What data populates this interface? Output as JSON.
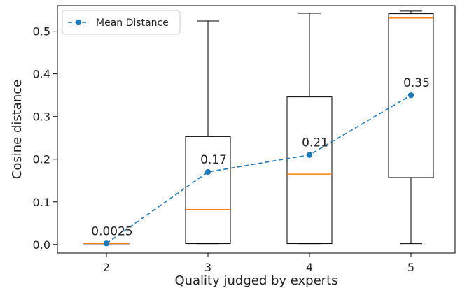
{
  "chart_data": {
    "type": "box",
    "xlabel": "Quality judged by experts",
    "ylabel": "Cosine distance",
    "categories": [
      "2",
      "3",
      "4",
      "5"
    ],
    "ylim": [
      -0.02,
      0.56
    ],
    "yticks": [
      0.0,
      0.1,
      0.2,
      0.3,
      0.4,
      0.5
    ],
    "ytick_labels": [
      "0.0",
      "0.1",
      "0.2",
      "0.3",
      "0.4",
      "0.5"
    ],
    "grid": false,
    "boxes": [
      {
        "category": "2",
        "whisker_low": 0.0025,
        "q1": 0.0025,
        "median": 0.0025,
        "q3": 0.0025,
        "whisker_high": 0.0025
      },
      {
        "category": "3",
        "whisker_low": 0.002,
        "q1": 0.002,
        "median": 0.082,
        "q3": 0.253,
        "whisker_high": 0.524
      },
      {
        "category": "4",
        "whisker_low": 0.002,
        "q1": 0.002,
        "median": 0.165,
        "q3": 0.346,
        "whisker_high": 0.542
      },
      {
        "category": "5",
        "whisker_low": 0.002,
        "q1": 0.157,
        "median": 0.531,
        "q3": 0.541,
        "whisker_high": 0.547
      }
    ],
    "series": [
      {
        "name": "Mean Distance",
        "values": [
          0.0025,
          0.17,
          0.21,
          0.35
        ],
        "labels": [
          "0.0025",
          "0.17",
          "0.21",
          "0.35"
        ],
        "style": "dashed line with circle markers",
        "color": "#1f77b4"
      }
    ],
    "median_color": "#ff7f0e",
    "legend": {
      "position": "top-left",
      "entries": [
        "Mean Distance"
      ]
    }
  }
}
